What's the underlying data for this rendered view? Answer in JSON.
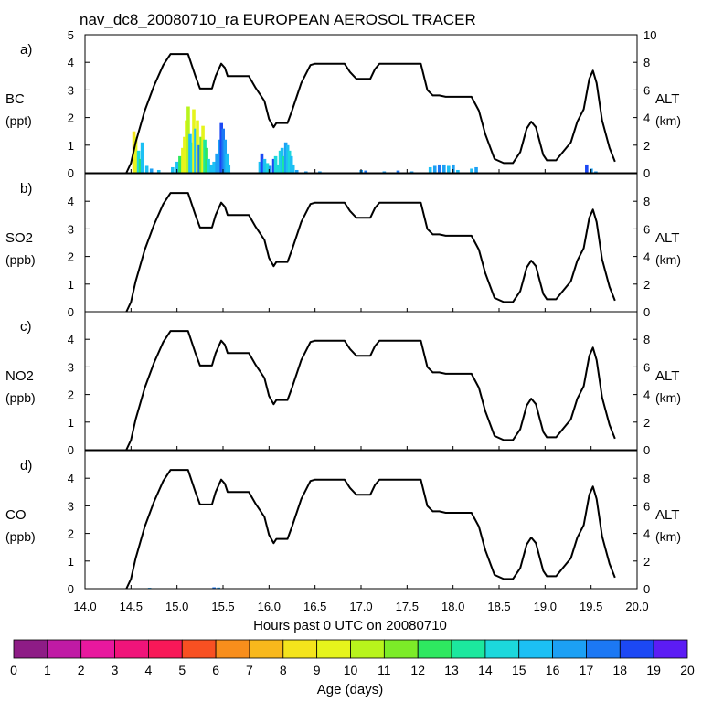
{
  "chart_data": {
    "type": "line",
    "title": "nav_dc8_20080710_ra EUROPEAN AEROSOL TRACER",
    "xlabel": "Hours past 0 UTC on 20080710",
    "xlim": [
      14.0,
      20.0
    ],
    "x_ticks": [
      "14.0",
      "14.5",
      "15.0",
      "15.5",
      "16.0",
      "16.5",
      "17.0",
      "17.5",
      "18.0",
      "18.5",
      "19.0",
      "19.5",
      "20.0"
    ],
    "right_axis": {
      "label": "ALT",
      "units": "(km)",
      "ylim": [
        0,
        10
      ],
      "ticks": [
        "0",
        "2",
        "4",
        "6",
        "8"
      ],
      "top_panel_ticks": [
        "0",
        "2",
        "4",
        "6",
        "8",
        "10"
      ]
    },
    "altitude_series": {
      "name": "ALT",
      "color": "#000000",
      "points": [
        [
          14.45,
          0
        ],
        [
          14.5,
          0.7
        ],
        [
          14.55,
          2.2
        ],
        [
          14.65,
          4.5
        ],
        [
          14.75,
          6.3
        ],
        [
          14.85,
          7.8
        ],
        [
          14.93,
          8.6
        ],
        [
          15.12,
          8.6
        ],
        [
          15.2,
          7.0
        ],
        [
          15.25,
          6.1
        ],
        [
          15.38,
          6.1
        ],
        [
          15.42,
          7.0
        ],
        [
          15.48,
          7.9
        ],
        [
          15.52,
          7.6
        ],
        [
          15.55,
          7.0
        ],
        [
          15.78,
          7.0
        ],
        [
          15.85,
          6.2
        ],
        [
          15.95,
          5.2
        ],
        [
          16.0,
          3.9
        ],
        [
          16.05,
          3.3
        ],
        [
          16.08,
          3.6
        ],
        [
          16.2,
          3.6
        ],
        [
          16.25,
          4.5
        ],
        [
          16.35,
          6.5
        ],
        [
          16.45,
          7.8
        ],
        [
          16.5,
          7.9
        ],
        [
          16.82,
          7.9
        ],
        [
          16.88,
          7.3
        ],
        [
          16.95,
          6.8
        ],
        [
          17.1,
          6.8
        ],
        [
          17.15,
          7.5
        ],
        [
          17.2,
          7.9
        ],
        [
          17.65,
          7.9
        ],
        [
          17.72,
          6.0
        ],
        [
          17.78,
          5.6
        ],
        [
          17.85,
          5.6
        ],
        [
          17.92,
          5.5
        ],
        [
          18.2,
          5.5
        ],
        [
          18.28,
          4.5
        ],
        [
          18.35,
          2.8
        ],
        [
          18.45,
          1.0
        ],
        [
          18.55,
          0.7
        ],
        [
          18.65,
          0.7
        ],
        [
          18.73,
          1.5
        ],
        [
          18.8,
          3.2
        ],
        [
          18.85,
          3.7
        ],
        [
          18.9,
          3.3
        ],
        [
          18.98,
          1.3
        ],
        [
          19.02,
          0.9
        ],
        [
          19.12,
          0.9
        ],
        [
          19.18,
          1.4
        ],
        [
          19.28,
          2.2
        ],
        [
          19.35,
          3.7
        ],
        [
          19.42,
          4.6
        ],
        [
          19.48,
          6.8
        ],
        [
          19.52,
          7.4
        ],
        [
          19.56,
          6.5
        ],
        [
          19.62,
          3.8
        ],
        [
          19.7,
          1.8
        ],
        [
          19.76,
          0.8
        ]
      ]
    },
    "colorbar": {
      "label": "Age (days)",
      "ticks": [
        "0",
        "1",
        "2",
        "3",
        "4",
        "5",
        "6",
        "7",
        "8",
        "9",
        "10",
        "11",
        "12",
        "13",
        "14",
        "15",
        "16",
        "17",
        "18",
        "19",
        "20"
      ],
      "colors": [
        "#8e1c86",
        "#c01aa5",
        "#e8189e",
        "#f0147a",
        "#f81858",
        "#f85022",
        "#f88e1c",
        "#f8b81c",
        "#f4e41c",
        "#e6f41c",
        "#b8f41c",
        "#7cec28",
        "#2ee860",
        "#1ce89e",
        "#1cd8dc",
        "#1cc0f4",
        "#1ca0f4",
        "#1c78f4",
        "#1c48f4",
        "#5c1cf4"
      ]
    },
    "panels": [
      {
        "letter": "a)",
        "species": "BC",
        "units": "(ppt)",
        "ylim": [
          0,
          5
        ],
        "y_ticks": [
          "0",
          "1",
          "2",
          "3",
          "4",
          "5"
        ],
        "bars": [
          {
            "x": 14.53,
            "v": 1.5,
            "c": 8
          },
          {
            "x": 14.55,
            "v": 1.3,
            "c": 9
          },
          {
            "x": 14.58,
            "v": 0.8,
            "c": 14
          },
          {
            "x": 14.6,
            "v": 0.5,
            "c": 12
          },
          {
            "x": 14.62,
            "v": 1.1,
            "c": 15
          },
          {
            "x": 14.67,
            "v": 0.25,
            "c": 15
          },
          {
            "x": 14.72,
            "v": 0.15,
            "c": 16
          },
          {
            "x": 14.8,
            "v": 0.1,
            "c": 15
          },
          {
            "x": 14.95,
            "v": 0.2,
            "c": 15
          },
          {
            "x": 15.0,
            "v": 0.4,
            "c": 15
          },
          {
            "x": 15.03,
            "v": 0.6,
            "c": 12
          },
          {
            "x": 15.06,
            "v": 0.9,
            "c": 9
          },
          {
            "x": 15.08,
            "v": 1.3,
            "c": 9
          },
          {
            "x": 15.1,
            "v": 1.9,
            "c": 9
          },
          {
            "x": 15.12,
            "v": 2.4,
            "c": 10
          },
          {
            "x": 15.14,
            "v": 1.4,
            "c": 15
          },
          {
            "x": 15.16,
            "v": 1.1,
            "c": 14
          },
          {
            "x": 15.18,
            "v": 2.3,
            "c": 9
          },
          {
            "x": 15.2,
            "v": 1.6,
            "c": 15
          },
          {
            "x": 15.22,
            "v": 1.9,
            "c": 9
          },
          {
            "x": 15.24,
            "v": 1.0,
            "c": 17
          },
          {
            "x": 15.26,
            "v": 1.3,
            "c": 11
          },
          {
            "x": 15.28,
            "v": 1.7,
            "c": 9
          },
          {
            "x": 15.3,
            "v": 1.2,
            "c": 13
          },
          {
            "x": 15.32,
            "v": 0.9,
            "c": 12
          },
          {
            "x": 15.34,
            "v": 0.5,
            "c": 14
          },
          {
            "x": 15.37,
            "v": 0.3,
            "c": 15
          },
          {
            "x": 15.4,
            "v": 0.4,
            "c": 15
          },
          {
            "x": 15.43,
            "v": 0.7,
            "c": 16
          },
          {
            "x": 15.46,
            "v": 1.2,
            "c": 16
          },
          {
            "x": 15.48,
            "v": 1.8,
            "c": 18
          },
          {
            "x": 15.5,
            "v": 1.6,
            "c": 17
          },
          {
            "x": 15.52,
            "v": 1.2,
            "c": 16
          },
          {
            "x": 15.54,
            "v": 0.7,
            "c": 15
          },
          {
            "x": 15.56,
            "v": 0.3,
            "c": 15
          },
          {
            "x": 15.9,
            "v": 0.4,
            "c": 15
          },
          {
            "x": 15.92,
            "v": 0.7,
            "c": 18
          },
          {
            "x": 15.95,
            "v": 0.5,
            "c": 15
          },
          {
            "x": 15.98,
            "v": 0.35,
            "c": 14
          },
          {
            "x": 16.01,
            "v": 0.25,
            "c": 16
          },
          {
            "x": 16.05,
            "v": 0.5,
            "c": 18
          },
          {
            "x": 16.07,
            "v": 0.6,
            "c": 14
          },
          {
            "x": 16.1,
            "v": 0.3,
            "c": 14
          },
          {
            "x": 16.12,
            "v": 0.8,
            "c": 14
          },
          {
            "x": 16.14,
            "v": 0.9,
            "c": 15
          },
          {
            "x": 16.16,
            "v": 0.6,
            "c": 13
          },
          {
            "x": 16.18,
            "v": 1.1,
            "c": 16
          },
          {
            "x": 16.2,
            "v": 1.0,
            "c": 15
          },
          {
            "x": 16.22,
            "v": 0.8,
            "c": 14
          },
          {
            "x": 16.24,
            "v": 0.6,
            "c": 15
          },
          {
            "x": 16.26,
            "v": 0.3,
            "c": 15
          },
          {
            "x": 16.3,
            "v": 0.1,
            "c": 16
          },
          {
            "x": 16.4,
            "v": 0.05,
            "c": 16
          },
          {
            "x": 16.55,
            "v": 0.05,
            "c": 16
          },
          {
            "x": 17.0,
            "v": 0.1,
            "c": 16
          },
          {
            "x": 17.05,
            "v": 0.08,
            "c": 17
          },
          {
            "x": 17.25,
            "v": 0.05,
            "c": 16
          },
          {
            "x": 17.4,
            "v": 0.08,
            "c": 17
          },
          {
            "x": 17.55,
            "v": 0.05,
            "c": 16
          },
          {
            "x": 17.75,
            "v": 0.2,
            "c": 15
          },
          {
            "x": 17.8,
            "v": 0.25,
            "c": 16
          },
          {
            "x": 17.85,
            "v": 0.3,
            "c": 17
          },
          {
            "x": 17.9,
            "v": 0.3,
            "c": 16
          },
          {
            "x": 17.95,
            "v": 0.25,
            "c": 15
          },
          {
            "x": 18.0,
            "v": 0.3,
            "c": 16
          },
          {
            "x": 18.05,
            "v": 0.1,
            "c": 15
          },
          {
            "x": 18.2,
            "v": 0.15,
            "c": 15
          },
          {
            "x": 18.25,
            "v": 0.2,
            "c": 16
          },
          {
            "x": 19.45,
            "v": 0.3,
            "c": 18
          },
          {
            "x": 19.5,
            "v": 0.15,
            "c": 16
          },
          {
            "x": 19.55,
            "v": 0.05,
            "c": 16
          }
        ]
      },
      {
        "letter": "b)",
        "species": "SO2",
        "units": "(ppb)",
        "ylim": [
          0,
          5
        ],
        "y_ticks": [
          "0",
          "1",
          "2",
          "3",
          "4"
        ],
        "bars": []
      },
      {
        "letter": "c)",
        "species": "NO2",
        "units": "(ppb)",
        "ylim": [
          0,
          5
        ],
        "y_ticks": [
          "0",
          "1",
          "2",
          "3",
          "4"
        ],
        "bars": []
      },
      {
        "letter": "d)",
        "species": "CO",
        "units": "(ppb)",
        "ylim": [
          0,
          5
        ],
        "y_ticks": [
          "0",
          "1",
          "2",
          "3",
          "4"
        ],
        "bars": [
          {
            "x": 14.7,
            "v": 0.03,
            "c": 16
          },
          {
            "x": 15.4,
            "v": 0.05,
            "c": 17
          },
          {
            "x": 15.45,
            "v": 0.04,
            "c": 16
          }
        ]
      }
    ]
  }
}
